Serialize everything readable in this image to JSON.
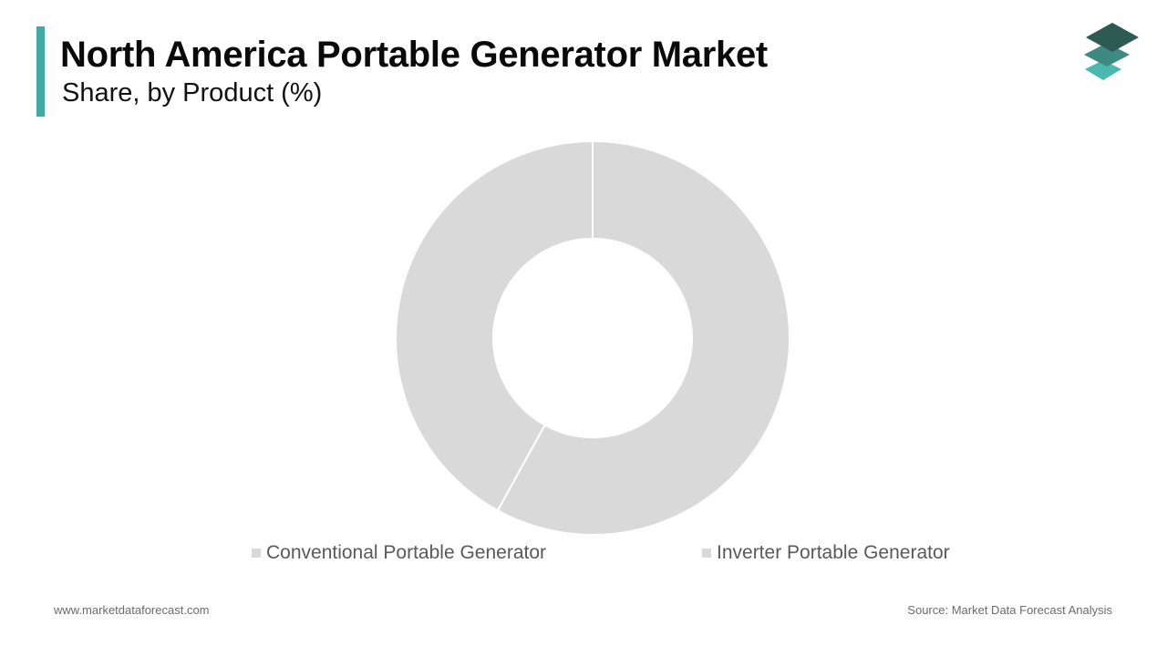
{
  "header": {
    "title": "North America Portable Generator Market",
    "subtitle": "Share, by Product (%)"
  },
  "colors": {
    "accent": "#3fa9a3",
    "slice_fill": "#d9d9d9",
    "slice_border": "#ffffff",
    "logo_top": "#2e5a54",
    "logo_mid": "#3d8a82",
    "logo_bottom": "#4bb8b0"
  },
  "icons": {
    "brand_logo": "stacked-layers-icon"
  },
  "chart_data": {
    "type": "pie",
    "donut": true,
    "labels": [
      "Conventional Portable Generator",
      "Inverter Portable Generator"
    ],
    "values": [
      58,
      42
    ],
    "legend_position": "bottom"
  },
  "footer": {
    "website": "www.marketdataforecast.com",
    "source": "Source: Market Data Forecast Analysis"
  }
}
